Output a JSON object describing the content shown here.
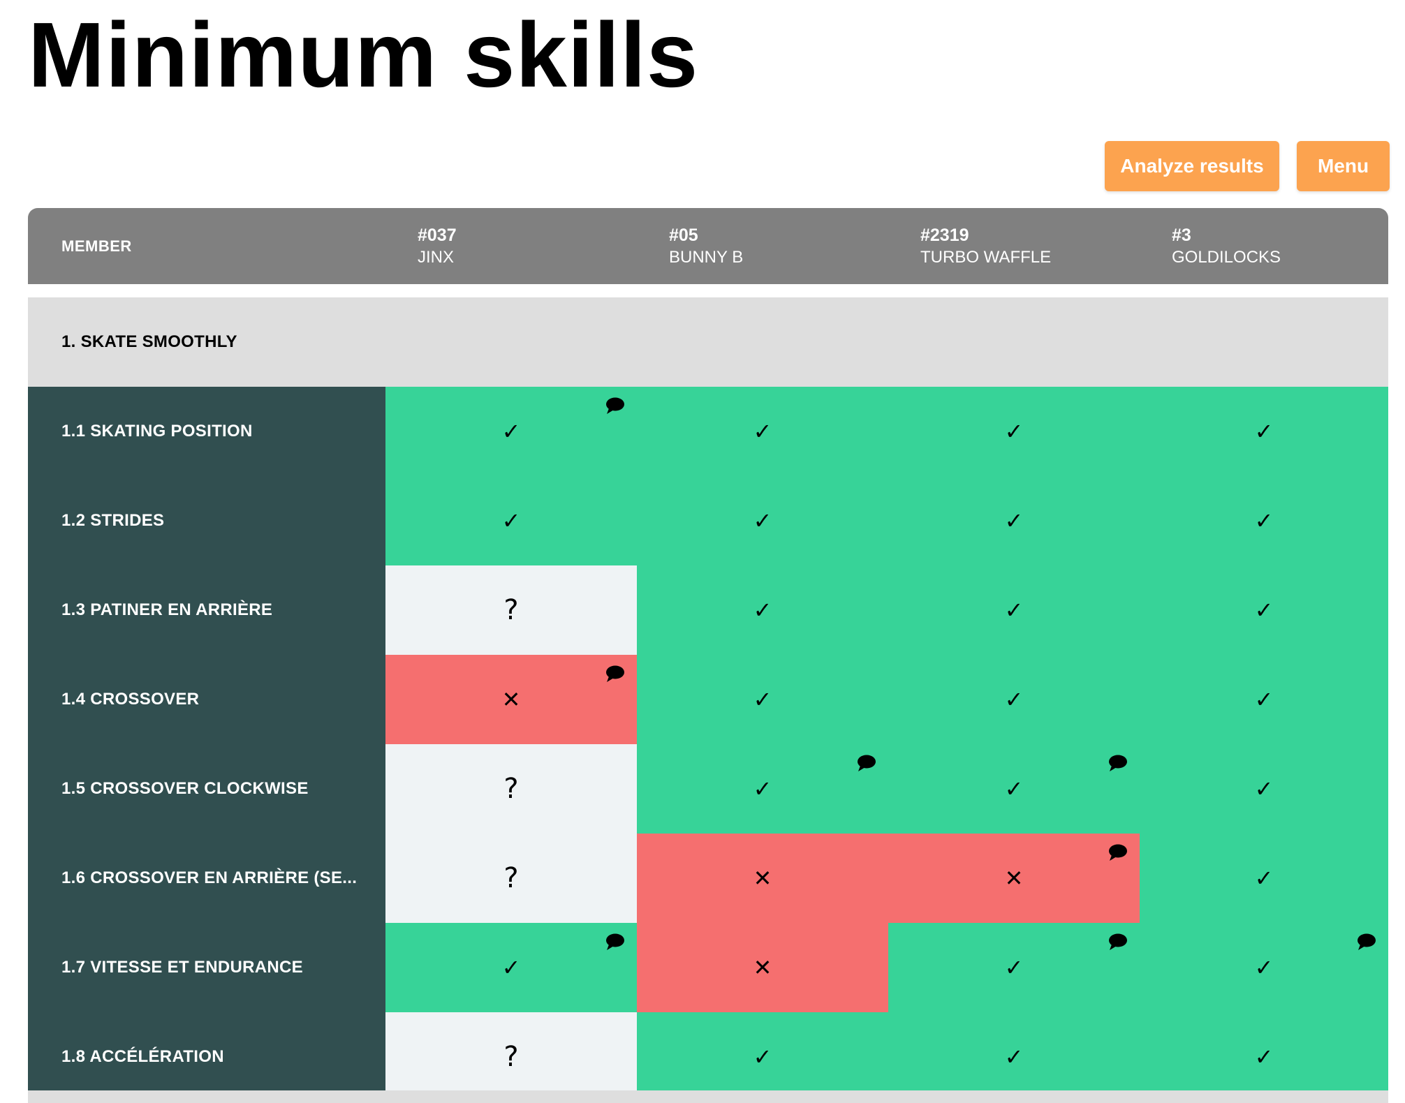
{
  "title": "Minimum skills",
  "actions": {
    "analyze": "Analyze results",
    "menu": "Menu"
  },
  "table": {
    "member_header": "MEMBER",
    "members": [
      {
        "number": "#037",
        "name": "JINX"
      },
      {
        "number": "#05",
        "name": "BUNNY B"
      },
      {
        "number": "#2319",
        "name": "TURBO WAFFLE"
      },
      {
        "number": "#3",
        "name": "GOLDILOCKS"
      }
    ],
    "section": "1. SKATE SMOOTHLY",
    "skills": [
      {
        "label": "1.1 SKATING POSITION"
      },
      {
        "label": "1.2 STRIDES"
      },
      {
        "label": "1.3 PATINER EN ARRIÈRE"
      },
      {
        "label": "1.4 CROSSOVER"
      },
      {
        "label": "1.5 CROSSOVER CLOCKWISE"
      },
      {
        "label": "1.6 CROSSOVER EN ARRIÈRE (SE..."
      },
      {
        "label": "1.7 VITESSE ET ENDURANCE"
      },
      {
        "label": "1.8 ACCÉLÉRATION"
      }
    ],
    "results": [
      [
        {
          "s": "pass",
          "c": true
        },
        {
          "s": "pass",
          "c": false
        },
        {
          "s": "pass",
          "c": false
        },
        {
          "s": "pass",
          "c": false
        }
      ],
      [
        {
          "s": "pass",
          "c": false
        },
        {
          "s": "pass",
          "c": false
        },
        {
          "s": "pass",
          "c": false
        },
        {
          "s": "pass",
          "c": false
        }
      ],
      [
        {
          "s": "unknown",
          "c": false
        },
        {
          "s": "pass",
          "c": false
        },
        {
          "s": "pass",
          "c": false
        },
        {
          "s": "pass",
          "c": false
        }
      ],
      [
        {
          "s": "fail",
          "c": true
        },
        {
          "s": "pass",
          "c": false
        },
        {
          "s": "pass",
          "c": false
        },
        {
          "s": "pass",
          "c": false
        }
      ],
      [
        {
          "s": "unknown",
          "c": false
        },
        {
          "s": "pass",
          "c": true
        },
        {
          "s": "pass",
          "c": true
        },
        {
          "s": "pass",
          "c": false
        }
      ],
      [
        {
          "s": "unknown",
          "c": false
        },
        {
          "s": "fail",
          "c": false
        },
        {
          "s": "fail",
          "c": true
        },
        {
          "s": "pass",
          "c": false
        }
      ],
      [
        {
          "s": "pass",
          "c": true
        },
        {
          "s": "fail",
          "c": false
        },
        {
          "s": "pass",
          "c": true
        },
        {
          "s": "pass",
          "c": true
        }
      ],
      [
        {
          "s": "unknown",
          "c": false
        },
        {
          "s": "pass",
          "c": false
        },
        {
          "s": "pass",
          "c": false
        },
        {
          "s": "pass",
          "c": false
        }
      ]
    ],
    "symbols": {
      "pass": "✓",
      "fail": "✕",
      "unknown": "?"
    },
    "icons": {
      "pass": "check-icon",
      "fail": "cross-icon",
      "unknown": "question-icon",
      "comment": "comment-icon"
    }
  },
  "colors": {
    "button": "#fca34f",
    "header": "#808080",
    "section": "#dedede",
    "skill": "#314f50",
    "pass": "#37d398",
    "fail": "#f56f6f",
    "unknown": "#eff3f5"
  }
}
